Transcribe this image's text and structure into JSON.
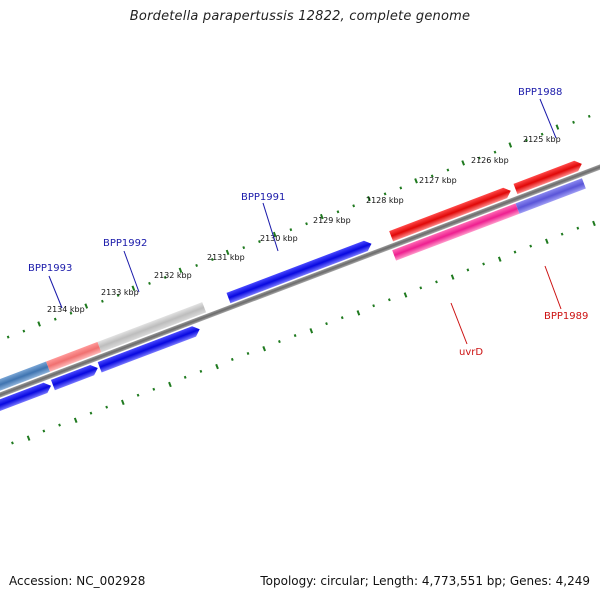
{
  "title": "Bordetella parapertussis 12822, complete genome",
  "footer": {
    "accession": "Accession: NC_002928",
    "summary": "Topology: circular; Length: 4,773,551 bp; Genes: 4,249"
  },
  "colors": {
    "forward": "#0a0ae6",
    "reverse": "#e60d0d",
    "backbone": "#7f7f7f",
    "ticks": "#1f7a1f",
    "label_forward": "#1a1aaa",
    "label_reverse": "#cc1111"
  },
  "tick_labels": [
    {
      "label": "2125 kbp",
      "pos": 0.05
    },
    {
      "label": "2126 kbp",
      "pos": 0.136
    },
    {
      "label": "2127 kbp",
      "pos": 0.223
    },
    {
      "label": "2128 kbp",
      "pos": 0.31
    },
    {
      "label": "2129 kbp",
      "pos": 0.398
    },
    {
      "label": "2130 kbp",
      "pos": 0.485
    },
    {
      "label": "2131 kbp",
      "pos": 0.572
    },
    {
      "label": "2132 kbp",
      "pos": 0.659
    },
    {
      "label": "2133 kbp",
      "pos": 0.747
    },
    {
      "label": "2134 kbp",
      "pos": 0.834
    }
  ],
  "gene_labels": [
    {
      "name": "BPP1988",
      "strand": "forward"
    },
    {
      "name": "BPP1991",
      "strand": "forward"
    },
    {
      "name": "BPP1992",
      "strand": "forward"
    },
    {
      "name": "BPP1993",
      "strand": "forward"
    },
    {
      "name": "BPP1989",
      "strand": "reverse"
    },
    {
      "name": "uvrD",
      "strand": "reverse"
    }
  ]
}
